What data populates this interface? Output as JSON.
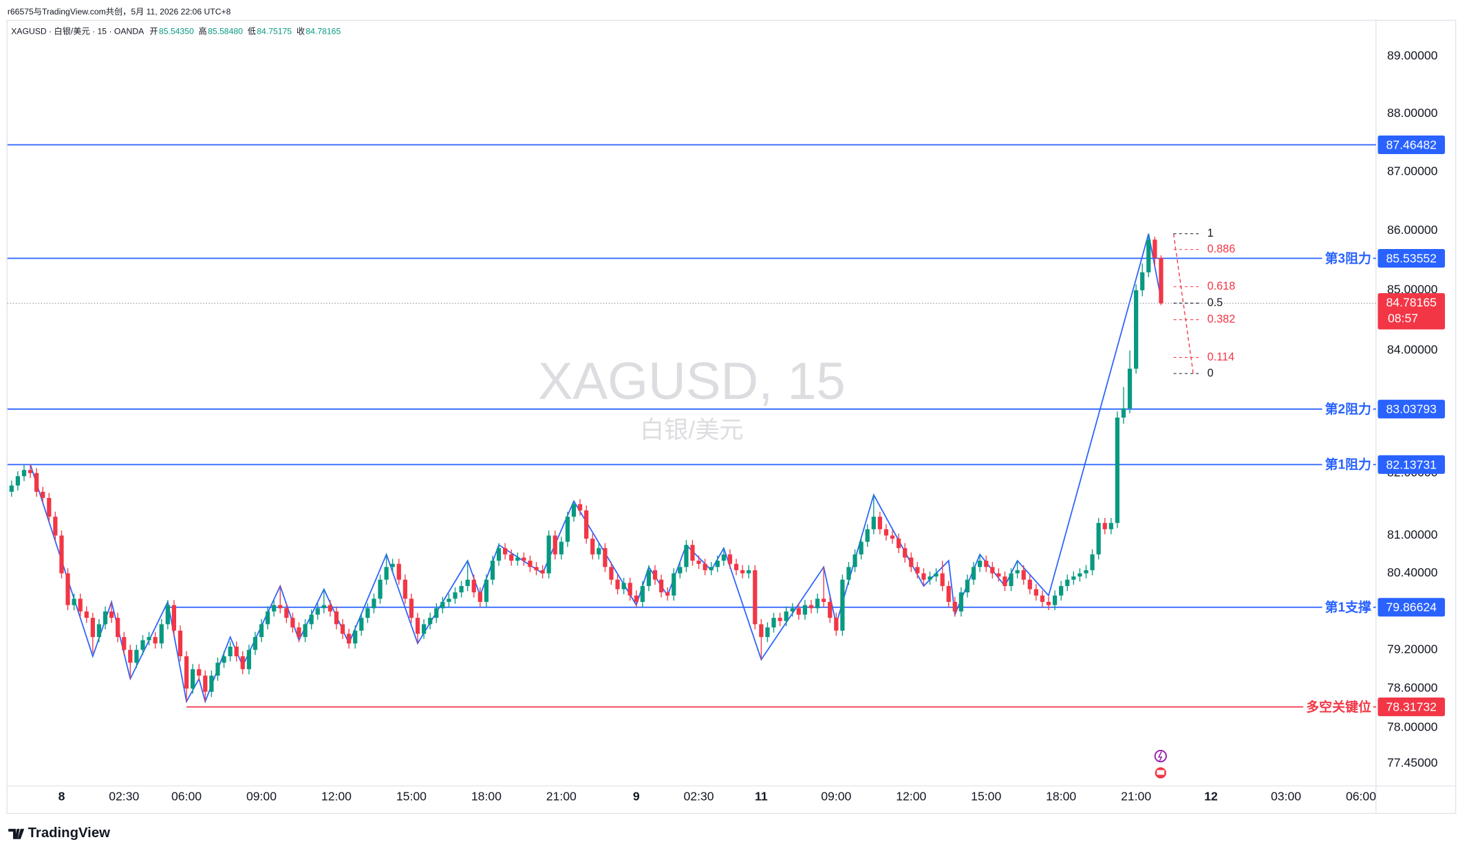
{
  "header": {
    "credit": "r66575与TradingView.com共创，5月 11, 2026 22:06 UTC+8",
    "symbol": "XAGUSD · 白银/美元 · 15 · OANDA",
    "ohlc": [
      {
        "label": "开",
        "value": "85.54350"
      },
      {
        "label": "高",
        "value": "85.58480"
      },
      {
        "label": "低",
        "value": "84.75175"
      },
      {
        "label": "收",
        "value": "84.78165"
      }
    ]
  },
  "watermark": {
    "title": "XAGUSD, 15",
    "subtitle": "白银/美元"
  },
  "footer": {
    "brand": "TradingView"
  },
  "chart_data": {
    "type": "candlestick",
    "up_color": "#089981",
    "down_color": "#f23645",
    "log_scale": true,
    "grid": false,
    "xlim": [
      -0.66,
      218.4
    ],
    "ylim": [
      77.11,
      89.64
    ],
    "xticks": [
      {
        "value": 8,
        "label": "8"
      },
      {
        "value": 18,
        "label": "02:30"
      },
      {
        "value": 28,
        "label": "06:00"
      },
      {
        "value": 40,
        "label": "09:00"
      },
      {
        "value": 52,
        "label": "12:00"
      },
      {
        "value": 64,
        "label": "15:00"
      },
      {
        "value": 76,
        "label": "18:00"
      },
      {
        "value": 88,
        "label": "21:00"
      },
      {
        "value": 100,
        "label": "9"
      },
      {
        "value": 110,
        "label": "02:30"
      },
      {
        "value": 120,
        "label": "11"
      },
      {
        "value": 132,
        "label": "09:00"
      },
      {
        "value": 144,
        "label": "12:00"
      },
      {
        "value": 156,
        "label": "15:00"
      },
      {
        "value": 168,
        "label": "18:00"
      },
      {
        "value": 180,
        "label": "21:00"
      },
      {
        "value": 192,
        "label": "12"
      },
      {
        "value": 204,
        "label": "03:00"
      },
      {
        "value": 216,
        "label": "06:00"
      }
    ],
    "yticks": [
      {
        "value": 89,
        "label": "89.00000"
      },
      {
        "value": 88,
        "label": "88.00000"
      },
      {
        "value": 87,
        "label": "87.00000"
      },
      {
        "value": 86,
        "label": "86.00000"
      },
      {
        "value": 85,
        "label": "85.00000"
      },
      {
        "value": 84,
        "label": "84.00000"
      },
      {
        "value": 82,
        "label": "82.00000"
      },
      {
        "value": 81,
        "label": "81.00000"
      },
      {
        "value": 80.4,
        "label": "80.40000"
      },
      {
        "value": 79.2,
        "label": "79.20000"
      },
      {
        "value": 78.6,
        "label": "78.60000"
      },
      {
        "value": 78,
        "label": "78.00000"
      },
      {
        "value": 77.45,
        "label": "77.45000"
      }
    ],
    "ohlc": [
      [
        81.7,
        81.88,
        81.62,
        81.8
      ],
      [
        81.8,
        82.03,
        81.72,
        81.95
      ],
      [
        81.95,
        82.13,
        81.87,
        82.05
      ],
      [
        82.05,
        82.14,
        81.92,
        82.0
      ],
      [
        82.0,
        82.08,
        81.62,
        81.7
      ],
      [
        81.7,
        81.78,
        81.52,
        81.6
      ],
      [
        81.6,
        81.68,
        81.22,
        81.3
      ],
      [
        81.3,
        81.38,
        80.92,
        81.0
      ],
      [
        81.0,
        81.08,
        80.32,
        80.4
      ],
      [
        80.4,
        80.48,
        79.82,
        79.9
      ],
      [
        79.9,
        80.08,
        79.82,
        80.0
      ],
      [
        80.0,
        80.08,
        79.72,
        79.8
      ],
      [
        79.8,
        79.88,
        79.62,
        79.7
      ],
      [
        79.7,
        79.78,
        79.15,
        79.4
      ],
      [
        79.4,
        79.68,
        79.32,
        79.6
      ],
      [
        79.6,
        79.88,
        79.52,
        79.8
      ],
      [
        79.8,
        79.95,
        79.62,
        79.7
      ],
      [
        79.7,
        79.78,
        79.32,
        79.4
      ],
      [
        79.4,
        79.48,
        79.12,
        79.2
      ],
      [
        79.2,
        79.28,
        78.75,
        79.0
      ],
      [
        79.0,
        79.28,
        78.92,
        79.2
      ],
      [
        79.2,
        79.43,
        79.12,
        79.35
      ],
      [
        79.35,
        79.48,
        79.27,
        79.4
      ],
      [
        79.4,
        79.48,
        79.22,
        79.3
      ],
      [
        79.3,
        79.68,
        79.22,
        79.6
      ],
      [
        79.6,
        79.98,
        79.52,
        79.9
      ],
      [
        79.9,
        79.98,
        79.42,
        79.5
      ],
      [
        79.5,
        79.58,
        79.02,
        79.1
      ],
      [
        79.1,
        79.18,
        78.4,
        78.6
      ],
      [
        78.6,
        78.98,
        78.52,
        78.9
      ],
      [
        78.9,
        78.98,
        78.72,
        78.8
      ],
      [
        78.8,
        78.88,
        78.4,
        78.55
      ],
      [
        78.55,
        78.88,
        78.47,
        78.8
      ],
      [
        78.8,
        79.08,
        78.72,
        79.0
      ],
      [
        79.0,
        79.18,
        78.92,
        79.1
      ],
      [
        79.1,
        79.33,
        79.02,
        79.25
      ],
      [
        79.25,
        79.33,
        79.02,
        79.1
      ],
      [
        79.1,
        79.18,
        78.82,
        78.9
      ],
      [
        78.9,
        79.28,
        78.82,
        79.2
      ],
      [
        79.2,
        79.48,
        79.12,
        79.4
      ],
      [
        79.4,
        79.68,
        79.32,
        79.6
      ],
      [
        79.6,
        79.88,
        79.52,
        79.8
      ],
      [
        79.8,
        79.98,
        79.72,
        79.9
      ],
      [
        79.9,
        80.2,
        79.77,
        79.85
      ],
      [
        79.85,
        79.93,
        79.62,
        79.7
      ],
      [
        79.7,
        79.78,
        79.47,
        79.55
      ],
      [
        79.55,
        79.63,
        79.32,
        79.4
      ],
      [
        79.4,
        79.68,
        79.32,
        79.6
      ],
      [
        79.6,
        79.83,
        79.52,
        79.75
      ],
      [
        79.75,
        79.93,
        79.67,
        79.85
      ],
      [
        79.85,
        80.15,
        79.77,
        79.9
      ],
      [
        79.9,
        79.98,
        79.72,
        79.8
      ],
      [
        79.8,
        79.88,
        79.52,
        79.6
      ],
      [
        79.6,
        79.68,
        79.37,
        79.45
      ],
      [
        79.45,
        79.53,
        79.22,
        79.3
      ],
      [
        79.3,
        79.58,
        79.22,
        79.5
      ],
      [
        79.5,
        79.78,
        79.42,
        79.7
      ],
      [
        79.7,
        79.93,
        79.62,
        79.85
      ],
      [
        79.85,
        80.08,
        79.77,
        80.0
      ],
      [
        80.0,
        80.38,
        79.92,
        80.3
      ],
      [
        80.3,
        80.7,
        80.22,
        80.5
      ],
      [
        80.5,
        80.63,
        80.42,
        80.55
      ],
      [
        80.55,
        80.63,
        80.22,
        80.3
      ],
      [
        80.3,
        80.38,
        79.92,
        80.0
      ],
      [
        80.0,
        80.08,
        79.62,
        79.7
      ],
      [
        79.7,
        79.78,
        79.3,
        79.45
      ],
      [
        79.45,
        79.68,
        79.37,
        79.6
      ],
      [
        79.6,
        79.78,
        79.52,
        79.7
      ],
      [
        79.7,
        79.93,
        79.62,
        79.85
      ],
      [
        79.85,
        80.03,
        79.77,
        79.95
      ],
      [
        79.95,
        80.08,
        79.87,
        80.0
      ],
      [
        80.0,
        80.18,
        79.92,
        80.1
      ],
      [
        80.1,
        80.28,
        80.02,
        80.2
      ],
      [
        80.2,
        80.6,
        80.12,
        80.3
      ],
      [
        80.3,
        80.38,
        80.02,
        80.1
      ],
      [
        80.1,
        80.18,
        79.87,
        79.95
      ],
      [
        79.95,
        80.38,
        79.87,
        80.3
      ],
      [
        80.3,
        80.68,
        80.22,
        80.6
      ],
      [
        80.6,
        80.88,
        80.52,
        80.8
      ],
      [
        80.8,
        80.88,
        80.62,
        80.7
      ],
      [
        80.7,
        80.78,
        80.52,
        80.6
      ],
      [
        80.6,
        80.73,
        80.52,
        80.65
      ],
      [
        80.65,
        80.73,
        80.52,
        80.6
      ],
      [
        80.6,
        80.68,
        80.42,
        80.5
      ],
      [
        80.5,
        80.58,
        80.37,
        80.45
      ],
      [
        80.45,
        80.53,
        80.32,
        80.4
      ],
      [
        80.4,
        81.08,
        80.32,
        81.0
      ],
      [
        81.0,
        81.08,
        80.62,
        80.7
      ],
      [
        80.7,
        80.98,
        80.62,
        80.9
      ],
      [
        80.9,
        81.38,
        80.82,
        81.3
      ],
      [
        81.3,
        81.55,
        81.22,
        81.5
      ],
      [
        81.5,
        81.58,
        81.32,
        81.4
      ],
      [
        81.4,
        81.48,
        80.87,
        80.95
      ],
      [
        80.95,
        81.03,
        80.62,
        80.7
      ],
      [
        80.7,
        80.88,
        80.62,
        80.8
      ],
      [
        80.8,
        80.88,
        80.42,
        80.5
      ],
      [
        80.5,
        80.58,
        80.22,
        80.3
      ],
      [
        80.3,
        80.38,
        80.07,
        80.15
      ],
      [
        80.15,
        80.33,
        80.07,
        80.25
      ],
      [
        80.25,
        80.33,
        79.97,
        80.05
      ],
      [
        80.05,
        80.13,
        79.87,
        79.95
      ],
      [
        79.95,
        80.28,
        79.87,
        80.2
      ],
      [
        80.2,
        80.53,
        80.12,
        80.45
      ],
      [
        80.45,
        80.53,
        80.22,
        80.3
      ],
      [
        80.3,
        80.38,
        80.02,
        80.1
      ],
      [
        80.1,
        80.18,
        79.97,
        80.05
      ],
      [
        80.05,
        80.48,
        79.97,
        80.4
      ],
      [
        80.4,
        80.58,
        80.32,
        80.5
      ],
      [
        80.5,
        80.93,
        80.42,
        80.85
      ],
      [
        80.85,
        80.93,
        80.52,
        80.6
      ],
      [
        80.6,
        80.68,
        80.47,
        80.55
      ],
      [
        80.55,
        80.63,
        80.37,
        80.45
      ],
      [
        80.45,
        80.58,
        80.37,
        80.5
      ],
      [
        80.5,
        80.68,
        80.42,
        80.6
      ],
      [
        80.6,
        80.8,
        80.52,
        80.7
      ],
      [
        80.7,
        80.78,
        80.47,
        80.55
      ],
      [
        80.55,
        80.63,
        80.37,
        80.45
      ],
      [
        80.45,
        80.53,
        80.32,
        80.4
      ],
      [
        80.4,
        80.53,
        80.32,
        80.45
      ],
      [
        80.45,
        80.53,
        79.52,
        79.6
      ],
      [
        79.6,
        79.68,
        79.05,
        79.4
      ],
      [
        79.4,
        79.63,
        79.32,
        79.55
      ],
      [
        79.55,
        79.78,
        79.47,
        79.7
      ],
      [
        79.7,
        79.78,
        79.57,
        79.65
      ],
      [
        79.65,
        79.88,
        79.57,
        79.8
      ],
      [
        79.8,
        79.93,
        79.72,
        79.85
      ],
      [
        79.85,
        79.93,
        79.67,
        79.75
      ],
      [
        79.75,
        79.98,
        79.67,
        79.9
      ],
      [
        79.9,
        79.98,
        79.77,
        79.85
      ],
      [
        79.85,
        80.08,
        79.77,
        80.0
      ],
      [
        80.0,
        80.5,
        79.87,
        79.95
      ],
      [
        79.95,
        80.03,
        79.62,
        79.7
      ],
      [
        79.7,
        79.78,
        79.42,
        79.5
      ],
      [
        79.5,
        80.38,
        79.42,
        80.3
      ],
      [
        80.3,
        80.58,
        80.22,
        80.5
      ],
      [
        80.5,
        80.78,
        80.42,
        80.7
      ],
      [
        80.7,
        80.98,
        80.62,
        80.9
      ],
      [
        80.9,
        81.18,
        80.82,
        81.1
      ],
      [
        81.1,
        81.65,
        81.02,
        81.3
      ],
      [
        81.3,
        81.38,
        81.02,
        81.1
      ],
      [
        81.1,
        81.18,
        80.92,
        81.0
      ],
      [
        81.0,
        81.08,
        80.87,
        80.95
      ],
      [
        80.95,
        81.03,
        80.72,
        80.8
      ],
      [
        80.8,
        80.88,
        80.57,
        80.65
      ],
      [
        80.65,
        80.73,
        80.42,
        80.5
      ],
      [
        80.5,
        80.58,
        80.32,
        80.4
      ],
      [
        80.4,
        80.48,
        80.2,
        80.3
      ],
      [
        80.3,
        80.43,
        80.22,
        80.35
      ],
      [
        80.35,
        80.48,
        80.27,
        80.4
      ],
      [
        80.4,
        80.6,
        80.12,
        80.2
      ],
      [
        80.2,
        80.28,
        79.87,
        79.95
      ],
      [
        79.95,
        80.03,
        79.72,
        79.8
      ],
      [
        79.8,
        80.18,
        79.72,
        80.1
      ],
      [
        80.1,
        80.38,
        80.02,
        80.3
      ],
      [
        80.3,
        80.58,
        80.22,
        80.5
      ],
      [
        80.5,
        80.7,
        80.42,
        80.6
      ],
      [
        80.6,
        80.68,
        80.42,
        80.5
      ],
      [
        80.5,
        80.58,
        80.32,
        80.4
      ],
      [
        80.4,
        80.48,
        80.27,
        80.35
      ],
      [
        80.35,
        80.43,
        80.12,
        80.2
      ],
      [
        80.2,
        80.48,
        80.12,
        80.4
      ],
      [
        80.4,
        80.6,
        80.32,
        80.45
      ],
      [
        80.45,
        80.53,
        80.22,
        80.3
      ],
      [
        80.3,
        80.38,
        80.07,
        80.15
      ],
      [
        80.15,
        80.23,
        79.97,
        80.05
      ],
      [
        80.05,
        80.13,
        79.87,
        79.95
      ],
      [
        79.95,
        80.03,
        79.82,
        79.9
      ],
      [
        79.9,
        80.13,
        79.82,
        80.05
      ],
      [
        80.05,
        80.28,
        79.97,
        80.2
      ],
      [
        80.2,
        80.38,
        80.12,
        80.3
      ],
      [
        80.3,
        80.43,
        80.22,
        80.35
      ],
      [
        80.35,
        80.48,
        80.27,
        80.4
      ],
      [
        80.4,
        80.53,
        80.32,
        80.45
      ],
      [
        80.45,
        80.78,
        80.37,
        80.7
      ],
      [
        80.7,
        81.28,
        80.62,
        81.2
      ],
      [
        81.2,
        81.28,
        81.02,
        81.1
      ],
      [
        81.1,
        81.28,
        81.02,
        81.2
      ],
      [
        81.2,
        83.0,
        81.12,
        82.9
      ],
      [
        82.9,
        83.4,
        82.8,
        83.05
      ],
      [
        83.05,
        84.0,
        82.97,
        83.7
      ],
      [
        83.7,
        85.1,
        83.62,
        85.0
      ],
      [
        85.0,
        85.45,
        84.9,
        85.3
      ],
      [
        85.3,
        85.95,
        85.22,
        85.85
      ],
      [
        85.85,
        85.9,
        85.4,
        85.5435
      ],
      [
        85.5435,
        85.5848,
        84.75175,
        84.78165
      ]
    ],
    "zigzag": {
      "color": "#2962ff",
      "x": [
        3,
        13,
        16,
        19,
        25,
        28,
        30,
        31,
        35,
        37,
        43,
        46,
        50,
        54,
        60,
        65,
        73,
        75,
        78,
        85,
        90,
        100,
        102,
        105,
        108,
        112,
        114,
        120,
        130,
        132,
        138,
        146,
        150,
        151,
        155,
        159,
        161,
        166,
        182,
        184
      ],
      "y": [
        82.14,
        79.1,
        79.95,
        78.75,
        79.95,
        78.4,
        78.75,
        78.4,
        79.4,
        78.95,
        80.2,
        79.35,
        80.15,
        79.3,
        80.7,
        79.3,
        80.6,
        80.05,
        80.85,
        80.4,
        81.55,
        79.9,
        80.5,
        80.05,
        80.85,
        80.45,
        80.8,
        79.05,
        80.5,
        79.6,
        81.65,
        80.2,
        80.6,
        79.75,
        80.7,
        80.2,
        80.6,
        80.05,
        85.95,
        84.85
      ]
    },
    "levels": [
      {
        "value": 87.46482,
        "color": "#2962ff"
      },
      {
        "value": 85.53552,
        "name": "第3阻力",
        "color": "#2962ff"
      },
      {
        "value": 83.03793,
        "name": "第2阻力",
        "color": "#2962ff"
      },
      {
        "value": 82.13731,
        "name": "第1阻力",
        "color": "#2962ff"
      },
      {
        "value": 79.86624,
        "name": "第1支撑",
        "color": "#2962ff",
        "from": 25
      },
      {
        "value": 78.31732,
        "name": "多空关键位",
        "color": "#f23645",
        "from": 28
      }
    ],
    "fib": {
      "high": 85.95,
      "low": 83.62,
      "x": [
        186,
        190.5
      ],
      "levels": [
        1,
        0.886,
        0.618,
        0.5,
        0.382,
        0.114,
        0
      ],
      "colors": [
        "#131722",
        "#f23645",
        "#f23645",
        "#131722",
        "#f23645",
        "#f23645",
        "#131722"
      ]
    },
    "last_price": {
      "value": 84.78165,
      "countdown": "08:57",
      "color": "#f23645"
    }
  }
}
